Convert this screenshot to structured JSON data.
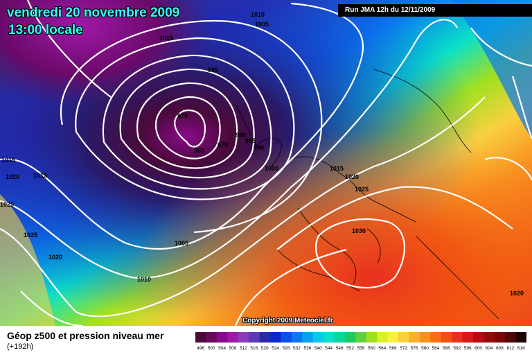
{
  "header": {
    "date_title": "vendredi 20 novembre 2009",
    "time_title": "13:00 locale",
    "run_info": "Run JMA 12h du 12/11/2009"
  },
  "copyright": "Copyright 2009 Meteociel.fr",
  "footer": {
    "title": "Géop z500 et pression niveau mer",
    "subtitle": "(+192h)"
  },
  "isobar_labels": [
    "1010",
    "1005",
    "1015",
    "995",
    "970",
    "965",
    "975",
    "980",
    "985",
    "990",
    "1000",
    "1015",
    "1020",
    "1025",
    "1030",
    "1015",
    "1020",
    "1025",
    "1015",
    "1020",
    "1025",
    "1020",
    "1005",
    "1010",
    "1020"
  ],
  "legend": {
    "values": [
      "496",
      "500",
      "504",
      "508",
      "512",
      "516",
      "520",
      "524",
      "528",
      "532",
      "536",
      "540",
      "544",
      "548",
      "552",
      "556",
      "560",
      "564",
      "568",
      "572",
      "576",
      "580",
      "584",
      "588",
      "592",
      "596",
      "600",
      "604",
      "608",
      "612",
      "616"
    ],
    "colors": [
      "#4a0a3a",
      "#6a0a5a",
      "#8a0a8a",
      "#a018a8",
      "#8a3ab8",
      "#5a3ab8",
      "#2a2aa8",
      "#0a28c8",
      "#0a50e8",
      "#0a78f0",
      "#0aa0f0",
      "#0ac8e8",
      "#0ae0c8",
      "#0ad89a",
      "#20c860",
      "#60d040",
      "#a0e020",
      "#d8f028",
      "#f8f040",
      "#f8d040",
      "#f8b030",
      "#f89020",
      "#f87010",
      "#f05010",
      "#e83020",
      "#d81818",
      "#b80a10",
      "#980a0a",
      "#780a0a",
      "#500808",
      "#200404"
    ]
  }
}
